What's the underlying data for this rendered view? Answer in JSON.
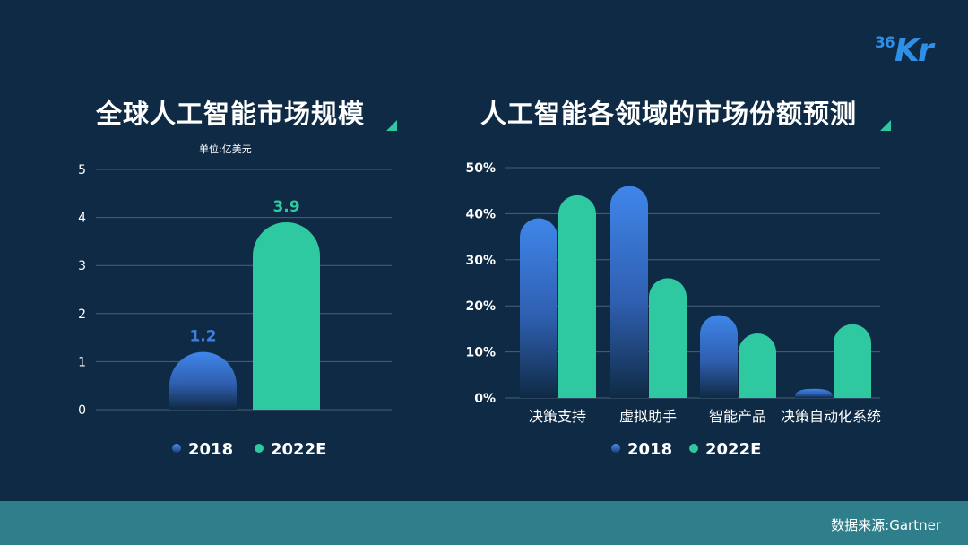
{
  "logo": {
    "small": "36",
    "big": "Kr"
  },
  "left": {
    "title": "全球人工智能市场规模",
    "unit": "单位:亿美元"
  },
  "right": {
    "title": "人工智能各领域的市场份额预测"
  },
  "footer": {
    "source": "数据来源:Gartner"
  },
  "colors": {
    "series_2018": "#3f7fe0",
    "series_2022": "#2ec9a0",
    "background": "#0f2a44",
    "footer": "#2e7f8b"
  },
  "chart_data": [
    {
      "type": "bar",
      "title": "全球人工智能市场规模",
      "categories": [
        "2018",
        "2022E"
      ],
      "series": [
        {
          "name": "",
          "values": [
            1.2,
            3.9
          ]
        }
      ],
      "data_labels": [
        "1.2",
        "3.9"
      ],
      "legend": [
        "2018",
        "2022E"
      ],
      "ylim": [
        0,
        5
      ],
      "yticks": [
        "0",
        "1",
        "2",
        "3",
        "4",
        "5"
      ],
      "grid": true,
      "legend_position": "bottom"
    },
    {
      "type": "bar",
      "title": "人工智能各领域的市场份额预测",
      "categories": [
        "决策支持",
        "虚拟助手",
        "智能产品",
        "决策自动化系统"
      ],
      "series": [
        {
          "name": "2018",
          "values": [
            39,
            46,
            18,
            2
          ]
        },
        {
          "name": "2022E",
          "values": [
            44,
            26,
            14,
            16
          ]
        }
      ],
      "ylim": [
        0,
        50
      ],
      "yticks": [
        "0%",
        "10%",
        "20%",
        "30%",
        "40%",
        "50%"
      ],
      "grid": true,
      "legend_position": "bottom"
    }
  ]
}
